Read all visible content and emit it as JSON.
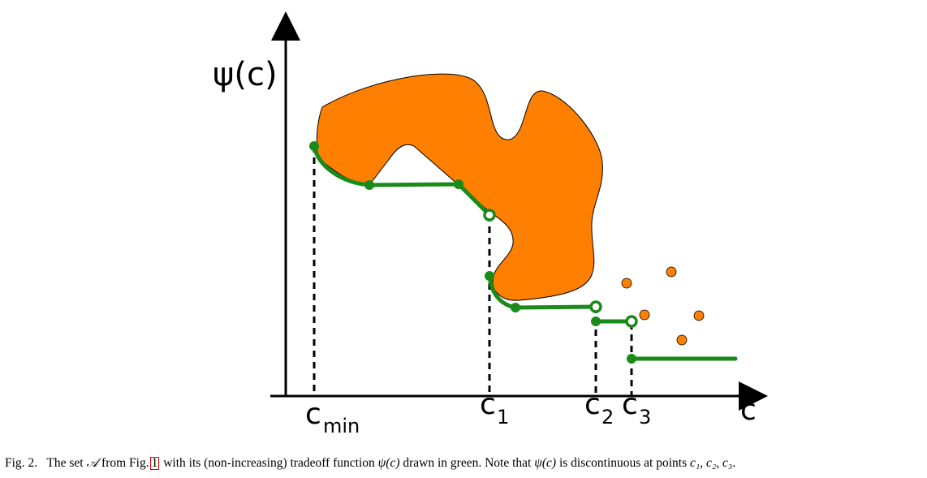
{
  "figure": {
    "y_axis_label": "ψ(c)",
    "x_axis_label": "c",
    "ticks": [
      {
        "id": "cmin",
        "base": "c",
        "sub": "min"
      },
      {
        "id": "c1",
        "base": "c",
        "sub": "1"
      },
      {
        "id": "c2",
        "base": "c",
        "sub": "2"
      },
      {
        "id": "c3",
        "base": "c",
        "sub": "3"
      }
    ],
    "colors": {
      "set_fill": "#ff7f00",
      "tradeoff_curve": "#1a8a1a",
      "axes": "#000000"
    }
  },
  "caption": {
    "prefix": "Fig. 2.",
    "text1": "The set",
    "set_symbol": "𝒜",
    "text2": "from Fig.",
    "fig_ref": "1",
    "text3": "with its (non-increasing) tradeoff function",
    "psi1": "ψ(c)",
    "text4": "drawn in green. Note that",
    "psi2": "ψ(c)",
    "text5": "is discontinuous at points",
    "points": "c₁, c₂, c₃",
    "end": "."
  }
}
